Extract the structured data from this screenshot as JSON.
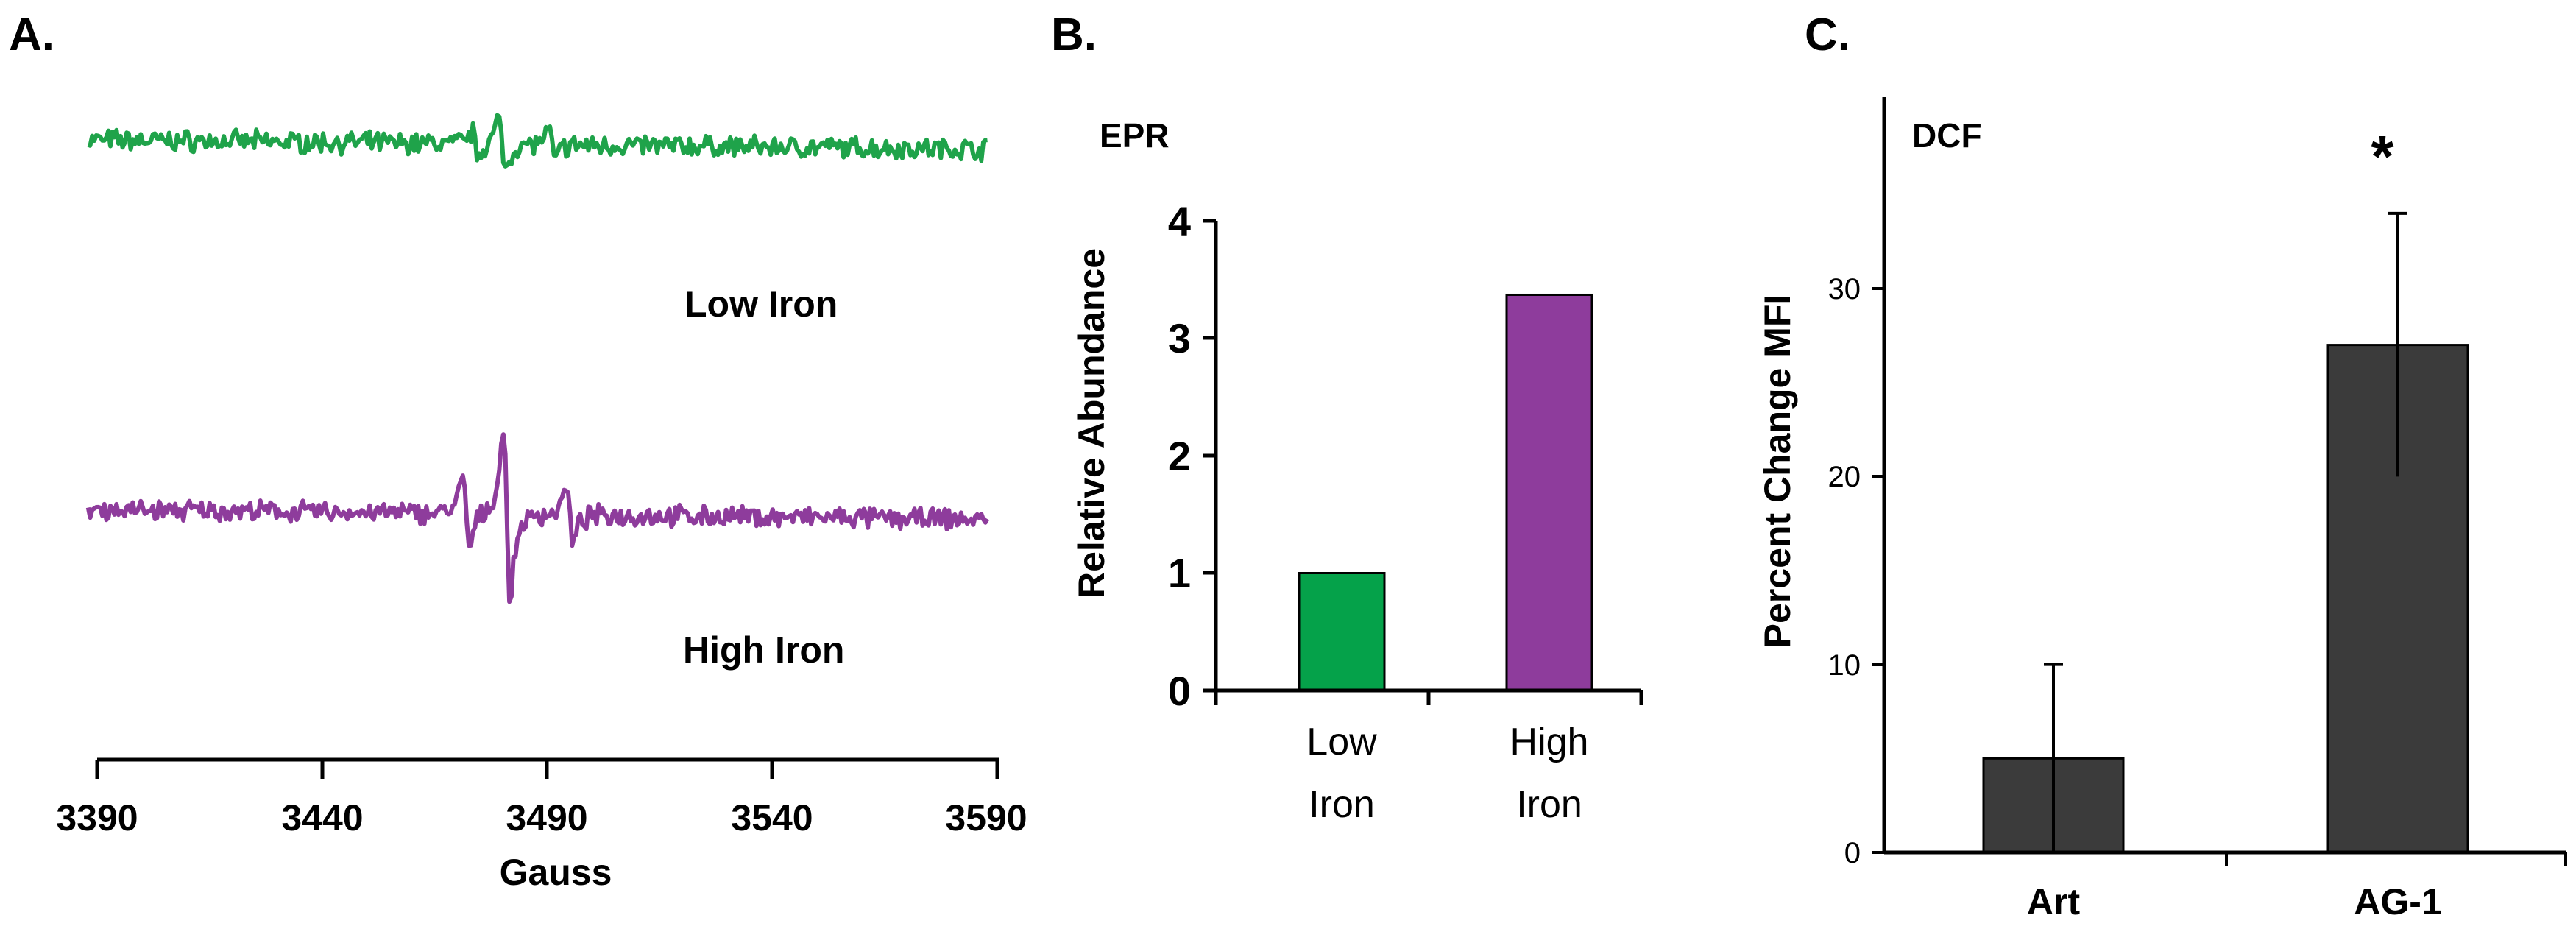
{
  "panel_labels": {
    "a": "A.",
    "b": "B.",
    "c": "C."
  },
  "chart_data": [
    {
      "panel": "A",
      "type": "line",
      "title": "",
      "xlabel": "Gauss",
      "ylabel": "",
      "xlim": [
        3387,
        3590
      ],
      "xticks": [
        "3390",
        "3440",
        "3490",
        "3540",
        "3590"
      ],
      "series": [
        {
          "name": "Low Iron",
          "label": "Low Iron",
          "color": "#1fa34a",
          "peaks": [
            {
              "x": 3474,
              "amp": 0.45
            },
            {
              "x": 3480,
              "amp": 1.0
            },
            {
              "x": 3491,
              "amp": 0.55
            }
          ],
          "noise": 0.22,
          "baseline_tilt": -0.25
        },
        {
          "name": "High Iron",
          "label": "High Iron",
          "color": "#8e3c9c",
          "peaks": [
            {
              "x": 3472,
              "amp": 1.3
            },
            {
              "x": 3481,
              "amp": 3.2
            },
            {
              "x": 3495,
              "amp": 1.05
            }
          ],
          "noise": 0.2,
          "baseline_tilt": -0.25
        }
      ]
    },
    {
      "panel": "B",
      "type": "bar",
      "title": "EPR",
      "xlabel": "",
      "ylabel": "Relative Abundance",
      "ylim": [
        0,
        4
      ],
      "yticks": [
        "0",
        "1",
        "2",
        "3",
        "4"
      ],
      "categories": [
        [
          "Low",
          "Iron"
        ],
        [
          "High",
          "Iron"
        ]
      ],
      "values": [
        1.0,
        3.37
      ],
      "colors": [
        "#05a24a",
        "#8e3c9c"
      ]
    },
    {
      "panel": "C",
      "type": "bar",
      "title": "DCF",
      "xlabel": "",
      "ylabel": "Percent Change MFI",
      "ylim": [
        0,
        40
      ],
      "yticks": [
        "0",
        "10",
        "20",
        "30"
      ],
      "categories": [
        "Art",
        "AG-1"
      ],
      "values": [
        5,
        27
      ],
      "error": [
        5,
        7
      ],
      "colors": [
        "#3b3b3b",
        "#3b3b3b"
      ],
      "significance": [
        "",
        "*"
      ]
    }
  ]
}
